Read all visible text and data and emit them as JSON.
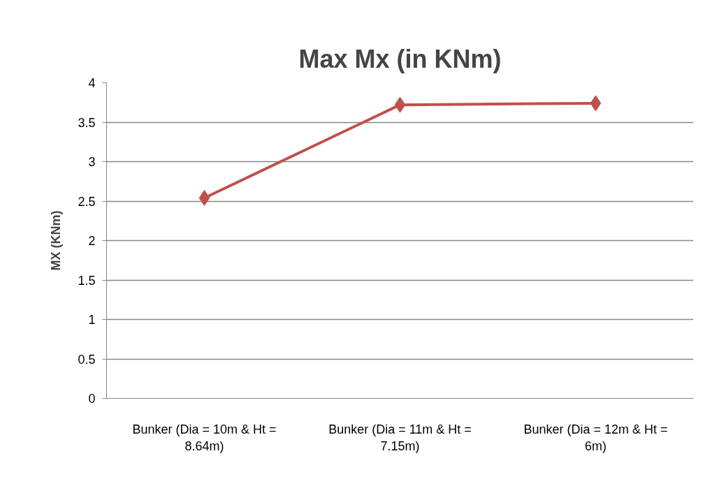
{
  "chart_data": {
    "type": "line",
    "title": "Max Mx (in KNm)",
    "ylabel": "MX (KNm)",
    "categories": [
      "Bunker (Dia = 10m & Ht = 8.64m)",
      "Bunker (Dia = 11m & Ht = 7.15m)",
      "Bunker (Dia = 12m & Ht = 6m)"
    ],
    "series": [
      {
        "color": "#c0504d",
        "values": [
          2.54,
          3.72,
          3.74
        ]
      }
    ],
    "ylim": [
      0,
      4
    ],
    "yticks": [
      0,
      0.5,
      1,
      1.5,
      2,
      2.5,
      3,
      3.5,
      4
    ],
    "grid": "y",
    "marker": "diamond",
    "line_style": "solid"
  }
}
